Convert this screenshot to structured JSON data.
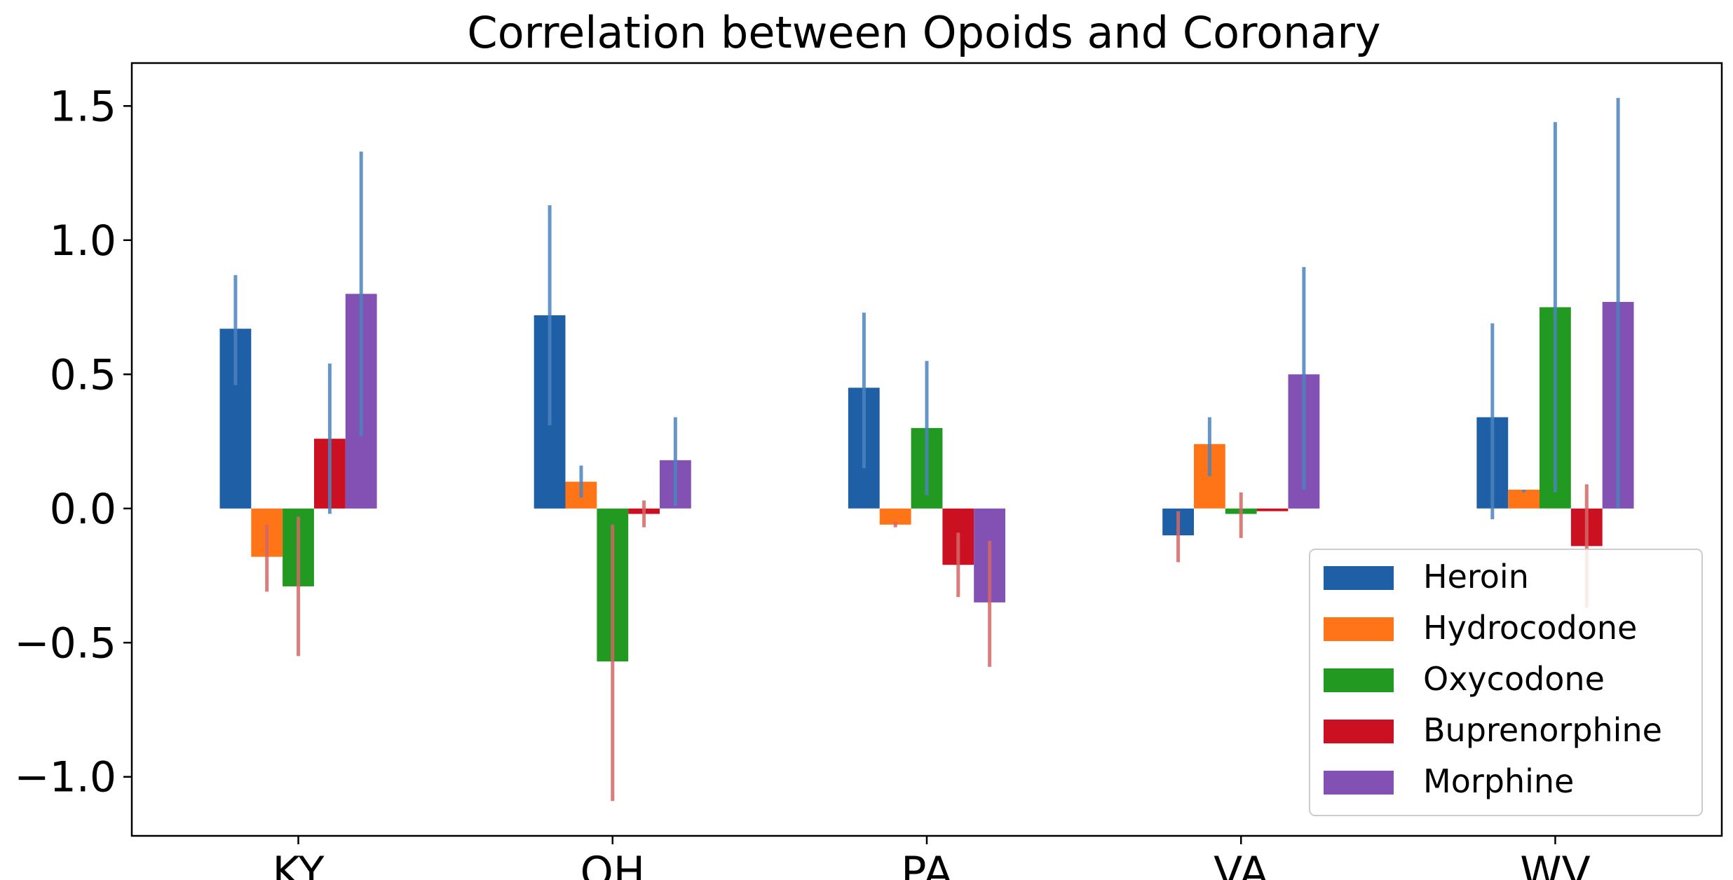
{
  "chart_data": {
    "type": "bar",
    "title": "Correlation between Opoids and Coronary",
    "xlabel": "",
    "ylabel": "",
    "categories": [
      "KY",
      "OH",
      "PA",
      "VA",
      "WV"
    ],
    "ylim": [
      -1.22,
      1.66
    ],
    "yticks": [
      -1.0,
      -0.5,
      0.0,
      0.5,
      1.0,
      1.5
    ],
    "ytick_labels": [
      "−1.0",
      "−0.5",
      "0.0",
      "0.5",
      "1.0",
      "1.5"
    ],
    "grid": false,
    "legend_position": "bottom-right",
    "series": [
      {
        "name": "Heroin",
        "color": "#1f5fa6",
        "values": [
          0.67,
          0.72,
          0.45,
          -0.1,
          0.34
        ],
        "error_low": [
          0.46,
          0.31,
          0.15,
          -0.2,
          -0.04
        ],
        "error_high": [
          0.87,
          1.13,
          0.73,
          -0.01,
          0.69
        ]
      },
      {
        "name": "Hydrocodone",
        "color": "#ff7417",
        "values": [
          -0.18,
          0.1,
          -0.06,
          0.24,
          0.07
        ],
        "error_low": [
          -0.31,
          0.04,
          -0.07,
          0.12,
          0.06
        ],
        "error_high": [
          -0.06,
          0.16,
          -0.05,
          0.34,
          0.07
        ]
      },
      {
        "name": "Oxycodone",
        "color": "#229a22",
        "values": [
          -0.29,
          -0.57,
          0.3,
          -0.02,
          0.75
        ],
        "error_low": [
          -0.55,
          -1.09,
          0.05,
          -0.11,
          0.06
        ],
        "error_high": [
          -0.03,
          -0.06,
          0.55,
          0.06,
          1.44
        ]
      },
      {
        "name": "Buprenorphine",
        "color": "#cb1022",
        "values": [
          0.26,
          -0.02,
          -0.21,
          -0.01,
          -0.14
        ],
        "error_low": [
          -0.02,
          -0.07,
          -0.33,
          -0.01,
          -0.37
        ],
        "error_high": [
          0.54,
          0.03,
          -0.09,
          -0.01,
          0.09
        ]
      },
      {
        "name": "Morphine",
        "color": "#8350b4",
        "values": [
          0.8,
          0.18,
          -0.35,
          0.5,
          0.77
        ],
        "error_low": [
          0.27,
          0.01,
          -0.59,
          0.07,
          0.0
        ],
        "error_high": [
          1.33,
          0.34,
          -0.12,
          0.9,
          1.53
        ]
      }
    ]
  }
}
